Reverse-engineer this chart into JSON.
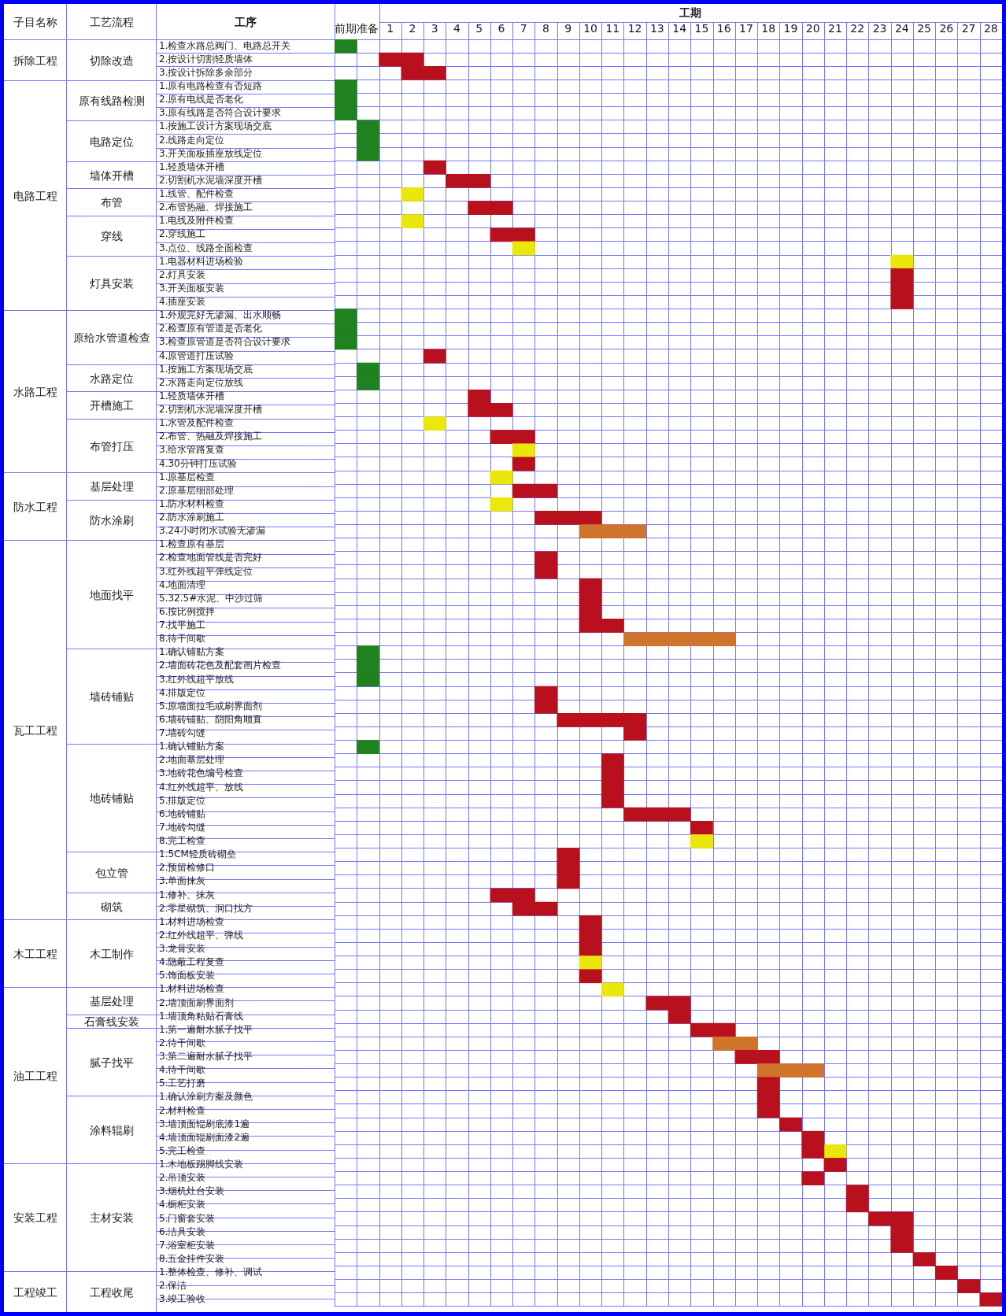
{
  "chart_data": [
    {
      "type": "other",
      "title": "子目名称",
      "categories": [
        "拆除工程",
        null,
        null,
        "电路工程",
        null,
        null,
        null,
        null,
        null,
        null,
        null,
        null,
        null,
        null,
        null,
        null,
        null,
        null,
        null,
        null,
        "水路工程",
        null,
        null,
        null,
        null,
        null,
        null,
        null,
        null,
        null,
        null,
        null,
        "防水工程",
        null,
        null,
        null,
        null,
        "瓦工工程",
        null,
        null,
        null,
        null,
        null,
        null,
        null,
        null,
        null,
        null,
        null,
        null,
        null,
        null,
        null,
        null,
        null,
        null,
        null,
        null,
        null,
        null,
        null,
        null,
        null,
        null,
        null,
        "木工工程",
        null,
        null,
        null,
        null,
        "油工工程",
        null,
        null,
        null,
        null,
        null,
        null,
        null,
        null,
        null,
        null,
        null,
        null,
        "安装工程",
        null,
        null,
        null,
        null,
        null,
        null,
        null,
        "工程竣工",
        null,
        null
      ]
    },
    {
      "type": "other",
      "title": "工艺流程",
      "categories": [
        "切除改造",
        null,
        null,
        "原有线路检测",
        null,
        null,
        "电路定位",
        null,
        null,
        "墙体开槽",
        null,
        "布管",
        null,
        "穿线",
        null,
        null,
        "灯具安装",
        null,
        null,
        null,
        "原给水管道检查",
        null,
        null,
        null,
        "水路定位",
        null,
        "开槽施工",
        null,
        "布管打压",
        null,
        null,
        null,
        "基层处理",
        null,
        "防水涂刷",
        null,
        null,
        "地面找平",
        null,
        null,
        null,
        null,
        null,
        null,
        null,
        "墙砖铺贴",
        null,
        null,
        null,
        null,
        null,
        null,
        "地砖铺贴",
        null,
        null,
        null,
        null,
        null,
        null,
        null,
        "包立管",
        null,
        null,
        "砌筑",
        null,
        "木工制作",
        null,
        null,
        null,
        null,
        "基层处理",
        null,
        "石膏线安装",
        "腻子找平",
        null,
        null,
        null,
        null,
        "涂料辊刷",
        null,
        null,
        null,
        null,
        "主材安装",
        null,
        null,
        null,
        null,
        null,
        null,
        null,
        "工程收尾",
        null,
        null
      ]
    },
    {
      "type": "bar",
      "orientation": "horizontal",
      "ylabel": "工序",
      "xlabel": "工期",
      "categories": [
        "1.检查水路总阀门、电路总开关",
        "2.按设计切割轻质墙体",
        "3.按设计拆除多余部分",
        "1.原有电路检查有否短路",
        "2.原有电线是否老化",
        "3.原有线路是否符合设计要求",
        "1.按施工设计方案现场交底",
        "2.线路走向定位",
        "3.开关面板插座放线定位",
        "1.轻质墙体开槽",
        "2.切割机水泥墙深度开槽",
        "1.线管、配件检查",
        "2.布管热融、焊接施工",
        "1.电线及附件检查",
        "2.穿线施工",
        "3.点位、线路全面检查",
        "1.电器材料进场检验",
        "2.灯具安装",
        "3.开关面板安装",
        "4.插座安装",
        "1.外观完好无渗漏、出水顺畅",
        "2.检查原有管道是否老化",
        "3.检查原管道是否符合设计要求",
        "4.原管道打压试验",
        "1.按施工方案现场交底",
        "2.水路走向定位放线",
        "1.轻质墙体开槽",
        "2.切割机水泥墙深度开槽",
        "1.水管及配件检查",
        "2.布管、热融及焊接施工",
        "3.给水管路复查",
        "4.30分钟打压试验",
        "1.原基层检查",
        "2.原基层细部处理",
        "1.防水材料检查",
        "2.防水涂刷施工",
        "3.24小时闭水试验无渗漏",
        "1.检查原有基层",
        "2.检查地面管线是否完好",
        "3.红外线超平弹线定位",
        "4.地面清理",
        "5.32.5#水泥、中沙过筛",
        "6.按比例搅拌",
        "7.找平施工",
        "8.待干间歇",
        "1.确认铺贴方案",
        "2.墙面砖花色及配套画片检查",
        "3.红外线超平放线",
        "4.排版定位",
        "5.原墙面拉毛或刷界面剂",
        "6.墙砖铺贴、阴阳角顺直",
        "7.墙砖勾缝",
        "1.确认铺贴方案",
        "2.地面基层处理",
        "3.地砖花色编号检查",
        "4.红外线超平、放线",
        "5.排版定位",
        "6.地砖铺贴",
        "7.地砖勾缝",
        "8.完工检查",
        "1.5CM轻质砖砌垒",
        "2.预留检修口",
        "3.单面抹灰",
        "1.修补、抹灰",
        "2.零星砌筑、洞口找方",
        "1.材料进场检查",
        "2.红外线超平、弹线",
        "3.龙骨安装",
        "4.隐蔽工程复查",
        "5.饰面板安装",
        "1.材料进场检查",
        "2.墙顶面刷界面剂",
        "1.墙顶角粘贴石膏线",
        "1.第一遍耐水腻子找平",
        "2.待干间歇",
        "3.第二遍耐水腻子找平",
        "4.待干间歇",
        "5.工艺打磨",
        "1.确认涂刷方案及颜色",
        "2.材料检查",
        "3.墙顶面辊刷底漆1遍",
        "4.墙顶面辊刷面漆2遍",
        "5.完工检查",
        "1.木地板踢脚线安装",
        "2.吊顶安装",
        "3.烟机灶台安装",
        "4.橱柜安装",
        "5.门窗套安装",
        "6.洁具安装",
        "7.浴室柜安装",
        "8.五金挂件安装",
        "1.整体检查、修补、调试",
        "2.保洁",
        "3.竣工验收"
      ],
      "series": [
        {
          "values": [
            1,
            2,
            2,
            1,
            1,
            1,
            1,
            1,
            1,
            1,
            2,
            1,
            2,
            1,
            2,
            1,
            1,
            1,
            1,
            1,
            1,
            1,
            1,
            1,
            1,
            1,
            1,
            2,
            1,
            2,
            1,
            1,
            1,
            2,
            1,
            3,
            3,
            null,
            1,
            1,
            1,
            1,
            1,
            2,
            5,
            1,
            1,
            1,
            1,
            1,
            4,
            1,
            1,
            1,
            1,
            1,
            1,
            3,
            1,
            1,
            1,
            1,
            1,
            2,
            2,
            1,
            1,
            1,
            1,
            1,
            1,
            2,
            1,
            2,
            2,
            2,
            3,
            1,
            1,
            1,
            1,
            1,
            1,
            1,
            1,
            1,
            1,
            2,
            1,
            1,
            1,
            1,
            1,
            1
          ],
          "base": [
            -1.5,
            0.5,
            1.5,
            -1.5,
            -1.5,
            -1.5,
            -0.5,
            -0.5,
            -0.5,
            2.5,
            3.5,
            1.5,
            4.5,
            1.5,
            5.5,
            6.5,
            23.5,
            23.5,
            23.5,
            23.5,
            -1.5,
            -1.5,
            -1.5,
            2.5,
            -0.5,
            -0.5,
            4.5,
            4.5,
            2.5,
            5.5,
            6.5,
            6.5,
            5.5,
            6.5,
            5.5,
            7.5,
            9.5,
            null,
            7.5,
            7.5,
            9.5,
            9.5,
            9.5,
            9.5,
            11.5,
            -0.5,
            -0.5,
            -0.5,
            7.5,
            7.5,
            8.5,
            11.5,
            -0.5,
            10.5,
            10.5,
            10.5,
            10.5,
            11.5,
            14.5,
            14.5,
            8.5,
            8.5,
            8.5,
            5.5,
            6.5,
            9.5,
            9.5,
            9.5,
            9.5,
            9.5,
            10.5,
            12.5,
            13.5,
            14.5,
            15.5,
            16.5,
            17.5,
            17.5,
            17.5,
            17.5,
            18.5,
            19.5,
            19.5,
            20.5,
            19.5,
            21.5,
            21.5,
            22.5,
            23.5,
            23.5,
            24.5,
            25.5,
            26.5,
            27.5
          ],
          "colors": [
            "#1f821f",
            "#b9101d",
            "#b9101d",
            "#1f821f",
            "#1f821f",
            "#1f821f",
            "#1f821f",
            "#1f821f",
            "#1f821f",
            "#b9101d",
            "#b9101d",
            "#ebe60c",
            "#b9101d",
            "#ebe60c",
            "#b9101d",
            "#ebe60c",
            "#ebe60c",
            "#b9101d",
            "#b9101d",
            "#b9101d",
            "#1f821f",
            "#1f821f",
            "#1f821f",
            "#b9101d",
            "#1f821f",
            "#1f821f",
            "#b9101d",
            "#b9101d",
            "#ebe60c",
            "#b9101d",
            "#ebe60c",
            "#b9101d",
            "#ebe60c",
            "#b9101d",
            "#ebe60c",
            "#b9101d",
            "#d1742b",
            null,
            "#b9101d",
            "#b9101d",
            "#b9101d",
            "#b9101d",
            "#b9101d",
            "#b9101d",
            "#d1742b",
            "#1f821f",
            "#1f821f",
            "#1f821f",
            "#b9101d",
            "#b9101d",
            "#b9101d",
            "#b9101d",
            "#1f821f",
            "#b9101d",
            "#b9101d",
            "#b9101d",
            "#b9101d",
            "#b9101d",
            "#b9101d",
            "#ebe60c",
            "#b9101d",
            "#b9101d",
            "#b9101d",
            "#b9101d",
            "#b9101d",
            "#b9101d",
            "#b9101d",
            "#b9101d",
            "#ebe60c",
            "#b9101d",
            "#ebe60c",
            "#b9101d",
            "#b9101d",
            "#b9101d",
            "#d1742b",
            "#b9101d",
            "#d1742b",
            "#b9101d",
            "#b9101d",
            "#b9101d",
            "#b9101d",
            "#b9101d",
            "#b9101d",
            "#b9101d",
            "#b9101d",
            "#b9101d",
            "#b9101d",
            "#b9101d",
            "#b9101d",
            "#b9101d",
            "#b9101d",
            "#b9101d",
            "#b9101d",
            "#b9101d"
          ]
        },
        {
          "color": "#ebe60c",
          "values": [
            null,
            null,
            null,
            null,
            null,
            null,
            null,
            null,
            null,
            null,
            null,
            null,
            null,
            null,
            null,
            null,
            null,
            null,
            null,
            null,
            null,
            null,
            null,
            null,
            null,
            null,
            null,
            null,
            null,
            null,
            null,
            null,
            null,
            null,
            null,
            null,
            null,
            null,
            null,
            null,
            null,
            null,
            null,
            null,
            null,
            null,
            null,
            null,
            null,
            null,
            null,
            null,
            null,
            null,
            null,
            null,
            null,
            null,
            null,
            null,
            null,
            null,
            null,
            null,
            null,
            null,
            null,
            null,
            null,
            null,
            null,
            null,
            null,
            null,
            null,
            null,
            null,
            null,
            null,
            null,
            null,
            null,
            1,
            null,
            null,
            null,
            null,
            null,
            null,
            null,
            null,
            null,
            null,
            null
          ],
          "base": [
            null,
            null,
            null,
            null,
            null,
            null,
            null,
            null,
            null,
            null,
            null,
            null,
            null,
            null,
            null,
            null,
            null,
            null,
            null,
            null,
            null,
            null,
            null,
            null,
            null,
            null,
            null,
            null,
            null,
            null,
            null,
            null,
            null,
            null,
            null,
            null,
            null,
            null,
            null,
            null,
            null,
            null,
            null,
            null,
            null,
            null,
            null,
            null,
            null,
            null,
            null,
            null,
            null,
            null,
            null,
            null,
            null,
            null,
            null,
            null,
            null,
            null,
            null,
            null,
            null,
            null,
            null,
            null,
            null,
            null,
            null,
            null,
            null,
            null,
            null,
            null,
            null,
            null,
            null,
            null,
            null,
            null,
            20.5,
            null,
            null,
            null,
            null,
            null,
            null,
            null,
            null,
            null,
            null,
            null
          ]
        }
      ],
      "xlim": [
        -1.5,
        28.5
      ],
      "xticks": [
        {
          "value": -0.5,
          "label": "前期准备"
        },
        1,
        2,
        3,
        4,
        5,
        6,
        7,
        8,
        9,
        10,
        11,
        12,
        13,
        14,
        15,
        16,
        17,
        18,
        19,
        20,
        21,
        22,
        23,
        24,
        25,
        26,
        27,
        28
      ],
      "grid": true
    }
  ]
}
